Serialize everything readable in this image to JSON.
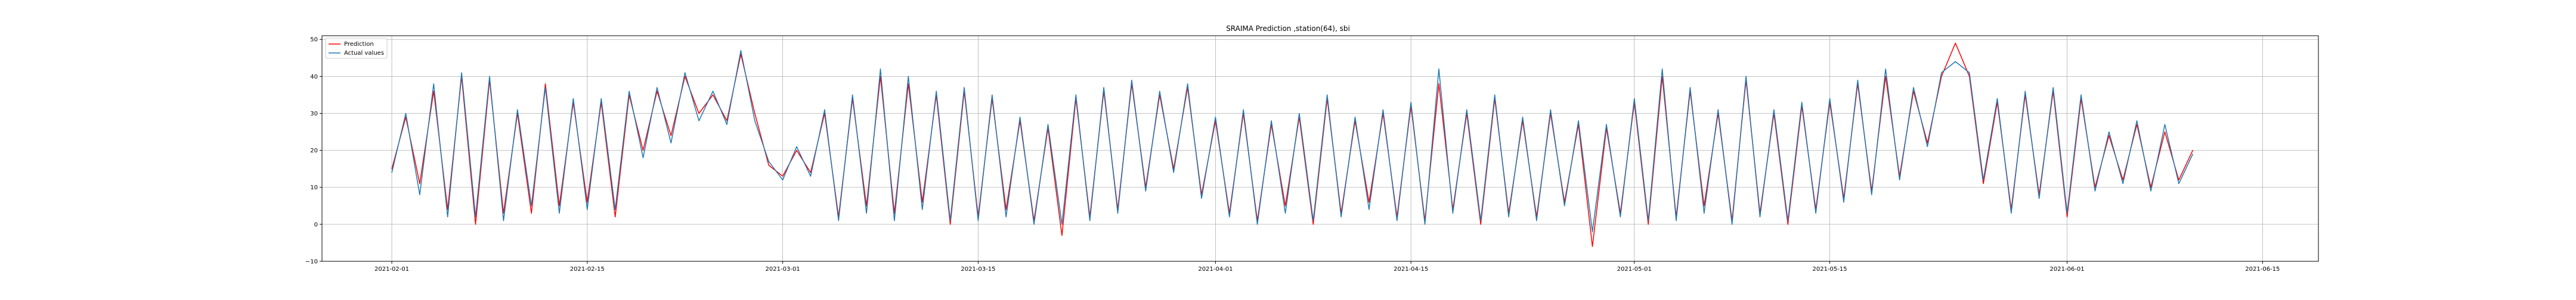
{
  "chart_data": {
    "type": "line",
    "title": "SRAIMA Prediction ,station(64), sbi",
    "xlabel": "",
    "ylabel": "",
    "ylim": [
      -10,
      51
    ],
    "xlim": [
      "2021-01-27",
      "2021-06-19"
    ],
    "yticks": [
      -10,
      0,
      10,
      20,
      30,
      40,
      50
    ],
    "xticks": [
      "2021-02-01",
      "2021-02-15",
      "2021-03-01",
      "2021-03-15",
      "2021-04-01",
      "2021-04-15",
      "2021-05-01",
      "2021-05-15",
      "2021-06-01",
      "2021-06-15"
    ],
    "grid": true,
    "legend_position": "top-left",
    "data_start": "2021-02-01",
    "data_end": "2021-06-10",
    "series": [
      {
        "name": "Prediction",
        "color": "#ff0000",
        "points": [
          [
            "2021-02-01",
            15
          ],
          [
            "2021-02-02",
            29
          ],
          [
            "2021-02-03",
            11
          ],
          [
            "2021-02-04",
            36
          ],
          [
            "2021-02-05",
            4
          ],
          [
            "2021-02-06",
            40
          ],
          [
            "2021-02-07",
            0
          ],
          [
            "2021-02-08",
            39
          ],
          [
            "2021-02-09",
            3
          ],
          [
            "2021-02-10",
            30
          ],
          [
            "2021-02-11",
            3
          ],
          [
            "2021-02-12",
            38
          ],
          [
            "2021-02-13",
            5
          ],
          [
            "2021-02-14",
            33
          ],
          [
            "2021-02-15",
            6
          ],
          [
            "2021-02-16",
            33
          ],
          [
            "2021-02-17",
            2
          ],
          [
            "2021-02-18",
            35
          ],
          [
            "2021-02-19",
            20
          ],
          [
            "2021-02-20",
            36
          ],
          [
            "2021-02-21",
            24
          ],
          [
            "2021-02-22",
            40
          ],
          [
            "2021-02-23",
            30
          ],
          [
            "2021-02-24",
            35
          ],
          [
            "2021-02-25",
            28
          ],
          [
            "2021-02-26",
            46
          ],
          [
            "2021-02-27",
            30
          ],
          [
            "2021-02-28",
            16
          ],
          [
            "2021-03-01",
            13
          ],
          [
            "2021-03-02",
            20
          ],
          [
            "2021-03-03",
            14
          ],
          [
            "2021-03-04",
            30
          ],
          [
            "2021-03-05",
            2
          ],
          [
            "2021-03-06",
            34
          ],
          [
            "2021-03-07",
            5
          ],
          [
            "2021-03-08",
            40
          ],
          [
            "2021-03-09",
            3
          ],
          [
            "2021-03-10",
            38
          ],
          [
            "2021-03-11",
            6
          ],
          [
            "2021-03-12",
            35
          ],
          [
            "2021-03-13",
            0
          ],
          [
            "2021-03-14",
            36
          ],
          [
            "2021-03-15",
            2
          ],
          [
            "2021-03-16",
            34
          ],
          [
            "2021-03-17",
            4
          ],
          [
            "2021-03-18",
            28
          ],
          [
            "2021-03-19",
            1
          ],
          [
            "2021-03-20",
            26
          ],
          [
            "2021-03-21",
            -3
          ],
          [
            "2021-03-22",
            34
          ],
          [
            "2021-03-23",
            2
          ],
          [
            "2021-03-24",
            36
          ],
          [
            "2021-03-25",
            4
          ],
          [
            "2021-03-26",
            38
          ],
          [
            "2021-03-27",
            10
          ],
          [
            "2021-03-28",
            35
          ],
          [
            "2021-03-29",
            15
          ],
          [
            "2021-03-30",
            37
          ],
          [
            "2021-03-31",
            8
          ],
          [
            "2021-04-01",
            28
          ],
          [
            "2021-04-02",
            3
          ],
          [
            "2021-04-03",
            30
          ],
          [
            "2021-04-04",
            1
          ],
          [
            "2021-04-05",
            27
          ],
          [
            "2021-04-06",
            5
          ],
          [
            "2021-04-07",
            29
          ],
          [
            "2021-04-08",
            0
          ],
          [
            "2021-04-09",
            34
          ],
          [
            "2021-04-10",
            3
          ],
          [
            "2021-04-11",
            28
          ],
          [
            "2021-04-12",
            6
          ],
          [
            "2021-04-13",
            30
          ],
          [
            "2021-04-14",
            2
          ],
          [
            "2021-04-15",
            32
          ],
          [
            "2021-04-16",
            1
          ],
          [
            "2021-04-17",
            38
          ],
          [
            "2021-04-18",
            4
          ],
          [
            "2021-04-19",
            30
          ],
          [
            "2021-04-20",
            0
          ],
          [
            "2021-04-21",
            34
          ],
          [
            "2021-04-22",
            3
          ],
          [
            "2021-04-23",
            28
          ],
          [
            "2021-04-24",
            2
          ],
          [
            "2021-04-25",
            30
          ],
          [
            "2021-04-26",
            6
          ],
          [
            "2021-04-27",
            27
          ],
          [
            "2021-04-28",
            -6
          ],
          [
            "2021-04-29",
            26
          ],
          [
            "2021-04-30",
            3
          ],
          [
            "2021-05-01",
            33
          ],
          [
            "2021-05-02",
            0
          ],
          [
            "2021-05-03",
            40
          ],
          [
            "2021-05-04",
            2
          ],
          [
            "2021-05-05",
            36
          ],
          [
            "2021-05-06",
            5
          ],
          [
            "2021-05-07",
            30
          ],
          [
            "2021-05-08",
            1
          ],
          [
            "2021-05-09",
            39
          ],
          [
            "2021-05-10",
            3
          ],
          [
            "2021-05-11",
            30
          ],
          [
            "2021-05-12",
            0
          ],
          [
            "2021-05-13",
            32
          ],
          [
            "2021-05-14",
            4
          ],
          [
            "2021-05-15",
            33
          ],
          [
            "2021-05-16",
            7
          ],
          [
            "2021-05-17",
            38
          ],
          [
            "2021-05-18",
            9
          ],
          [
            "2021-05-19",
            40
          ],
          [
            "2021-05-20",
            13
          ],
          [
            "2021-05-21",
            36
          ],
          [
            "2021-05-22",
            22
          ],
          [
            "2021-05-23",
            40
          ],
          [
            "2021-05-24",
            49
          ],
          [
            "2021-05-25",
            40
          ],
          [
            "2021-05-26",
            11
          ],
          [
            "2021-05-27",
            33
          ],
          [
            "2021-05-28",
            4
          ],
          [
            "2021-05-29",
            35
          ],
          [
            "2021-05-30",
            8
          ],
          [
            "2021-05-31",
            36
          ],
          [
            "2021-06-01",
            2
          ],
          [
            "2021-06-02",
            34
          ],
          [
            "2021-06-03",
            10
          ],
          [
            "2021-06-04",
            24
          ],
          [
            "2021-06-05",
            12
          ],
          [
            "2021-06-06",
            27
          ],
          [
            "2021-06-07",
            10
          ],
          [
            "2021-06-08",
            25
          ],
          [
            "2021-06-09",
            12
          ],
          [
            "2021-06-10",
            20
          ]
        ]
      },
      {
        "name": "Actual values",
        "color": "#1f77b4",
        "points": [
          [
            "2021-02-01",
            14
          ],
          [
            "2021-02-02",
            30
          ],
          [
            "2021-02-03",
            8
          ],
          [
            "2021-02-04",
            38
          ],
          [
            "2021-02-05",
            2
          ],
          [
            "2021-02-06",
            41
          ],
          [
            "2021-02-07",
            2
          ],
          [
            "2021-02-08",
            40
          ],
          [
            "2021-02-09",
            1
          ],
          [
            "2021-02-10",
            31
          ],
          [
            "2021-02-11",
            5
          ],
          [
            "2021-02-12",
            37
          ],
          [
            "2021-02-13",
            3
          ],
          [
            "2021-02-14",
            34
          ],
          [
            "2021-02-15",
            4
          ],
          [
            "2021-02-16",
            34
          ],
          [
            "2021-02-17",
            4
          ],
          [
            "2021-02-18",
            36
          ],
          [
            "2021-02-19",
            18
          ],
          [
            "2021-02-20",
            37
          ],
          [
            "2021-02-21",
            22
          ],
          [
            "2021-02-22",
            41
          ],
          [
            "2021-02-23",
            28
          ],
          [
            "2021-02-24",
            36
          ],
          [
            "2021-02-25",
            27
          ],
          [
            "2021-02-26",
            47
          ],
          [
            "2021-02-27",
            28
          ],
          [
            "2021-02-28",
            17
          ],
          [
            "2021-03-01",
            12
          ],
          [
            "2021-03-02",
            21
          ],
          [
            "2021-03-03",
            13
          ],
          [
            "2021-03-04",
            31
          ],
          [
            "2021-03-05",
            1
          ],
          [
            "2021-03-06",
            35
          ],
          [
            "2021-03-07",
            3
          ],
          [
            "2021-03-08",
            42
          ],
          [
            "2021-03-09",
            1
          ],
          [
            "2021-03-10",
            40
          ],
          [
            "2021-03-11",
            4
          ],
          [
            "2021-03-12",
            36
          ],
          [
            "2021-03-13",
            1
          ],
          [
            "2021-03-14",
            37
          ],
          [
            "2021-03-15",
            1
          ],
          [
            "2021-03-16",
            35
          ],
          [
            "2021-03-17",
            2
          ],
          [
            "2021-03-18",
            29
          ],
          [
            "2021-03-19",
            0
          ],
          [
            "2021-03-20",
            27
          ],
          [
            "2021-03-21",
            0
          ],
          [
            "2021-03-22",
            35
          ],
          [
            "2021-03-23",
            1
          ],
          [
            "2021-03-24",
            37
          ],
          [
            "2021-03-25",
            3
          ],
          [
            "2021-03-26",
            39
          ],
          [
            "2021-03-27",
            9
          ],
          [
            "2021-03-28",
            36
          ],
          [
            "2021-03-29",
            14
          ],
          [
            "2021-03-30",
            38
          ],
          [
            "2021-03-31",
            7
          ],
          [
            "2021-04-01",
            29
          ],
          [
            "2021-04-02",
            2
          ],
          [
            "2021-04-03",
            31
          ],
          [
            "2021-04-04",
            0
          ],
          [
            "2021-04-05",
            28
          ],
          [
            "2021-04-06",
            3
          ],
          [
            "2021-04-07",
            30
          ],
          [
            "2021-04-08",
            1
          ],
          [
            "2021-04-09",
            35
          ],
          [
            "2021-04-10",
            2
          ],
          [
            "2021-04-11",
            29
          ],
          [
            "2021-04-12",
            4
          ],
          [
            "2021-04-13",
            31
          ],
          [
            "2021-04-14",
            1
          ],
          [
            "2021-04-15",
            33
          ],
          [
            "2021-04-16",
            0
          ],
          [
            "2021-04-17",
            42
          ],
          [
            "2021-04-18",
            3
          ],
          [
            "2021-04-19",
            31
          ],
          [
            "2021-04-20",
            1
          ],
          [
            "2021-04-21",
            35
          ],
          [
            "2021-04-22",
            2
          ],
          [
            "2021-04-23",
            29
          ],
          [
            "2021-04-24",
            1
          ],
          [
            "2021-04-25",
            31
          ],
          [
            "2021-04-26",
            5
          ],
          [
            "2021-04-27",
            28
          ],
          [
            "2021-04-28",
            -2
          ],
          [
            "2021-04-29",
            27
          ],
          [
            "2021-04-30",
            2
          ],
          [
            "2021-05-01",
            34
          ],
          [
            "2021-05-02",
            1
          ],
          [
            "2021-05-03",
            42
          ],
          [
            "2021-05-04",
            1
          ],
          [
            "2021-05-05",
            37
          ],
          [
            "2021-05-06",
            3
          ],
          [
            "2021-05-07",
            31
          ],
          [
            "2021-05-08",
            0
          ],
          [
            "2021-05-09",
            40
          ],
          [
            "2021-05-10",
            2
          ],
          [
            "2021-05-11",
            31
          ],
          [
            "2021-05-12",
            1
          ],
          [
            "2021-05-13",
            33
          ],
          [
            "2021-05-14",
            3
          ],
          [
            "2021-05-15",
            34
          ],
          [
            "2021-05-16",
            6
          ],
          [
            "2021-05-17",
            39
          ],
          [
            "2021-05-18",
            8
          ],
          [
            "2021-05-19",
            42
          ],
          [
            "2021-05-20",
            12
          ],
          [
            "2021-05-21",
            37
          ],
          [
            "2021-05-22",
            21
          ],
          [
            "2021-05-23",
            41
          ],
          [
            "2021-05-24",
            44
          ],
          [
            "2021-05-25",
            41
          ],
          [
            "2021-05-26",
            12
          ],
          [
            "2021-05-27",
            34
          ],
          [
            "2021-05-28",
            3
          ],
          [
            "2021-05-29",
            36
          ],
          [
            "2021-05-30",
            7
          ],
          [
            "2021-05-31",
            37
          ],
          [
            "2021-06-01",
            3
          ],
          [
            "2021-06-02",
            35
          ],
          [
            "2021-06-03",
            9
          ],
          [
            "2021-06-04",
            25
          ],
          [
            "2021-06-05",
            11
          ],
          [
            "2021-06-06",
            28
          ],
          [
            "2021-06-07",
            9
          ],
          [
            "2021-06-08",
            27
          ],
          [
            "2021-06-09",
            11
          ],
          [
            "2021-06-10",
            19
          ]
        ]
      }
    ]
  }
}
